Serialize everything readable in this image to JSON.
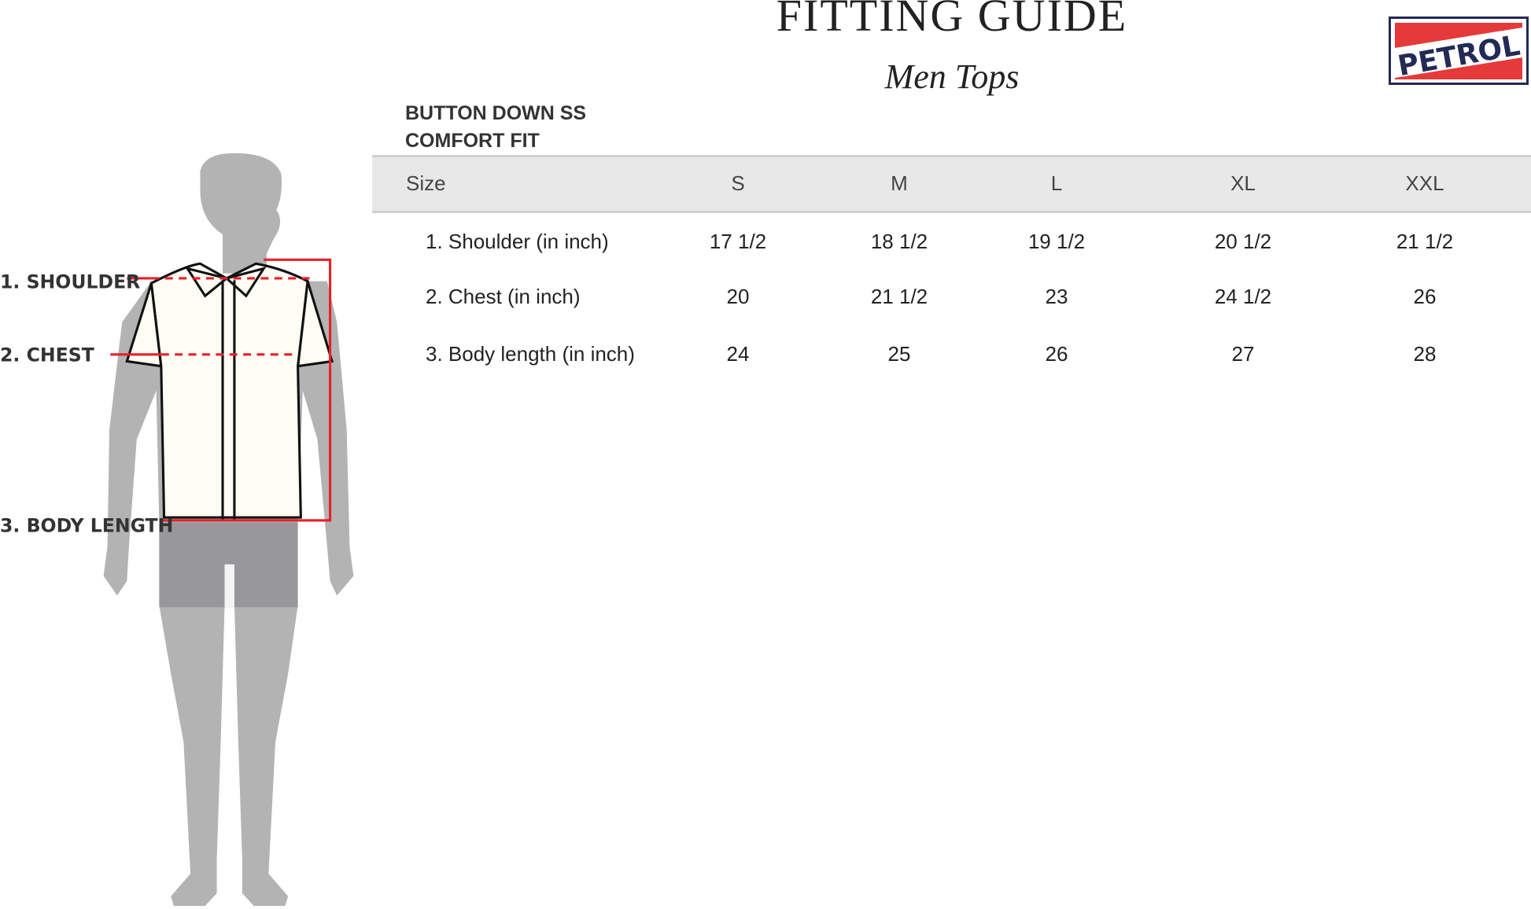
{
  "header": {
    "title": "FITTING GUIDE",
    "subtitle": "Men Tops",
    "logo_text": "PETROL"
  },
  "product": {
    "line1": "BUTTON DOWN SS",
    "line2": "COMFORT FIT"
  },
  "figure": {
    "labels": [
      "1. SHOULDER",
      "2. CHEST",
      "3. BODY LENGTH"
    ]
  },
  "table": {
    "header_label": "Size",
    "sizes": [
      "S",
      "M",
      "L",
      "XL",
      "XXL"
    ],
    "rows": [
      {
        "label": "1. Shoulder (in inch)",
        "values": [
          "17 1/2",
          "18 1/2",
          "19 1/2",
          "20 1/2",
          "21 1/2"
        ]
      },
      {
        "label": "2. Chest (in inch)",
        "values": [
          "20",
          "21 1/2",
          "23",
          "24 1/2",
          "26"
        ]
      },
      {
        "label": "3. Body length (in inch)",
        "values": [
          "24",
          "25",
          "26",
          "27",
          "28"
        ]
      }
    ]
  },
  "colors": {
    "measure_line": "#e8202a",
    "silhouette": "#b3b3b3",
    "shorts": "#98979c",
    "shirt": "#fdfdf4",
    "logo_navy": "#232a55",
    "logo_red": "#e63a3a",
    "table_header_bg": "#e8e8e8"
  }
}
